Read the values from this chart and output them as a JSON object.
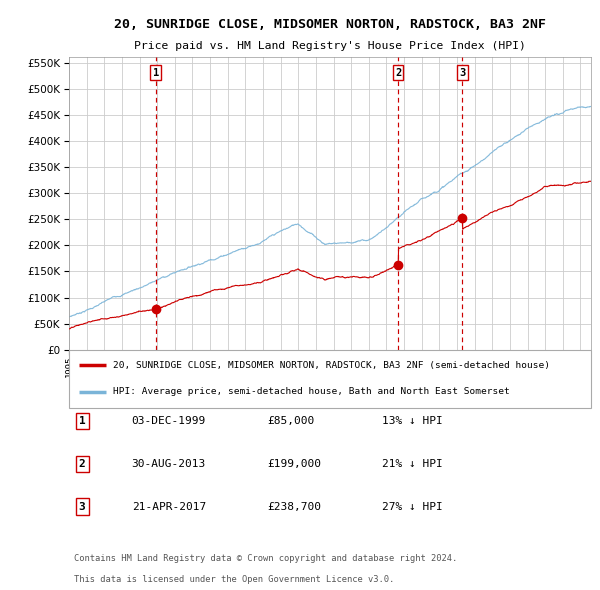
{
  "title": "20, SUNRIDGE CLOSE, MIDSOMER NORTON, RADSTOCK, BA3 2NF",
  "subtitle": "Price paid vs. HM Land Registry's House Price Index (HPI)",
  "legend_line1": "20, SUNRIDGE CLOSE, MIDSOMER NORTON, RADSTOCK, BA3 2NF (semi-detached house)",
  "legend_line2": "HPI: Average price, semi-detached house, Bath and North East Somerset",
  "footer1": "Contains HM Land Registry data © Crown copyright and database right 2024.",
  "footer2": "This data is licensed under the Open Government Licence v3.0.",
  "transactions": [
    {
      "num": 1,
      "date": "03-DEC-1999",
      "price": "85,000",
      "hpi_note": "13% ↓ HPI",
      "date_val": 1999.92
    },
    {
      "num": 2,
      "date": "30-AUG-2013",
      "price": "199,000",
      "hpi_note": "21% ↓ HPI",
      "date_val": 2013.66
    },
    {
      "num": 3,
      "date": "21-APR-2017",
      "price": "238,700",
      "hpi_note": "27% ↓ HPI",
      "date_val": 2017.3
    }
  ],
  "hpi_color": "#7ab4d8",
  "price_color": "#cc0000",
  "vline_color": "#cc0000",
  "plot_bg": "#ffffff",
  "grid_color": "#cccccc",
  "ylim": [
    0,
    560000
  ],
  "yticks": [
    0,
    50000,
    100000,
    150000,
    200000,
    250000,
    300000,
    350000,
    400000,
    450000,
    500000,
    550000
  ],
  "xlim_start": 1995.0,
  "xlim_end": 2024.6
}
